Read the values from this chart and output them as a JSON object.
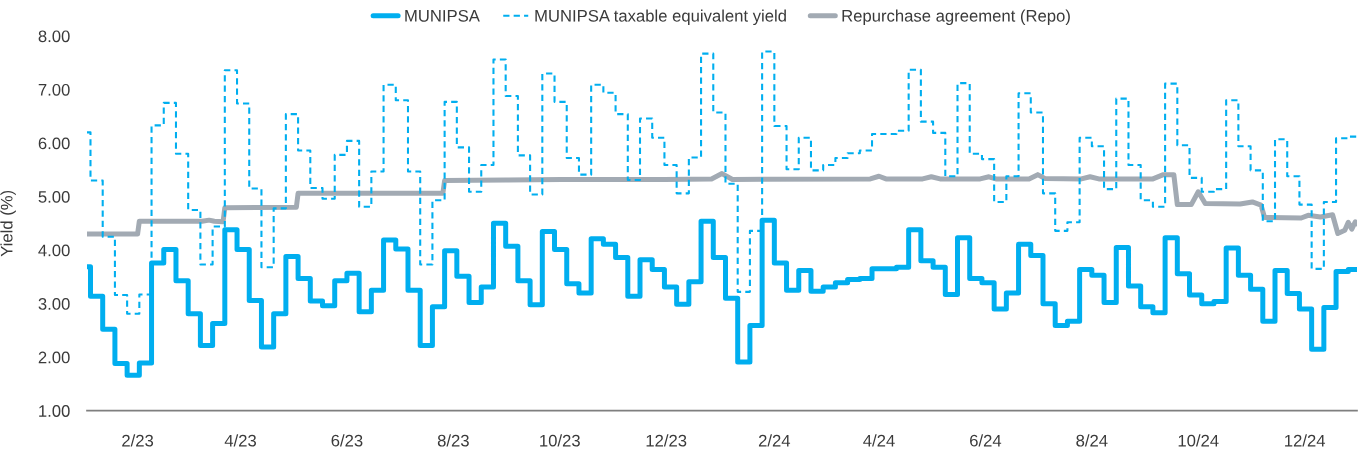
{
  "chart_data": {
    "type": "step",
    "ylabel": "Yield (%)",
    "legend": "top",
    "ylim": [
      1,
      8
    ],
    "yticks": [
      {
        "value": 1,
        "label": "1.00"
      },
      {
        "value": 2,
        "label": "2.00"
      },
      {
        "value": 3,
        "label": "3.00"
      },
      {
        "value": 4,
        "label": "4.00"
      },
      {
        "value": 5,
        "label": "5.00"
      },
      {
        "value": 6,
        "label": "6.00"
      },
      {
        "value": 7,
        "label": "7.00"
      },
      {
        "value": 8,
        "label": "8.00"
      }
    ],
    "xlim": [
      "2023-01-03",
      "2024-12-31"
    ],
    "xticks": [
      {
        "value": "2023-02-01",
        "label": "2/23"
      },
      {
        "value": "2023-04-01",
        "label": "4/23"
      },
      {
        "value": "2023-06-01",
        "label": "6/23"
      },
      {
        "value": "2023-08-01",
        "label": "8/23"
      },
      {
        "value": "2023-10-01",
        "label": "10/23"
      },
      {
        "value": "2023-12-01",
        "label": "12/23"
      },
      {
        "value": "2024-02-01",
        "label": "2/24"
      },
      {
        "value": "2024-04-01",
        "label": "4/24"
      },
      {
        "value": "2024-06-01",
        "label": "6/24"
      },
      {
        "value": "2024-08-01",
        "label": "8/24"
      },
      {
        "value": "2024-10-01",
        "label": "10/24"
      },
      {
        "value": "2024-12-01",
        "label": "12/24"
      }
    ],
    "x": [
      "2023-01-03",
      "2023-01-05",
      "2023-01-12",
      "2023-01-19",
      "2023-01-26",
      "2023-02-02",
      "2023-02-09",
      "2023-02-16",
      "2023-02-23",
      "2023-03-02",
      "2023-03-09",
      "2023-03-16",
      "2023-03-23",
      "2023-03-30",
      "2023-04-06",
      "2023-04-13",
      "2023-04-20",
      "2023-04-27",
      "2023-05-04",
      "2023-05-11",
      "2023-05-18",
      "2023-05-25",
      "2023-06-01",
      "2023-06-08",
      "2023-06-15",
      "2023-06-22",
      "2023-06-29",
      "2023-07-06",
      "2023-07-13",
      "2023-07-20",
      "2023-07-27",
      "2023-08-03",
      "2023-08-10",
      "2023-08-17",
      "2023-08-24",
      "2023-08-31",
      "2023-09-07",
      "2023-09-14",
      "2023-09-21",
      "2023-09-28",
      "2023-10-05",
      "2023-10-12",
      "2023-10-19",
      "2023-10-26",
      "2023-11-02",
      "2023-11-09",
      "2023-11-16",
      "2023-11-23",
      "2023-11-30",
      "2023-12-07",
      "2023-12-14",
      "2023-12-21",
      "2023-12-28",
      "2024-01-04",
      "2024-01-11",
      "2024-01-18",
      "2024-01-25",
      "2024-02-01",
      "2024-02-08",
      "2024-02-15",
      "2024-02-22",
      "2024-02-29",
      "2024-03-07",
      "2024-03-14",
      "2024-03-21",
      "2024-03-28",
      "2024-04-04",
      "2024-04-11",
      "2024-04-18",
      "2024-04-25",
      "2024-05-02",
      "2024-05-09",
      "2024-05-16",
      "2024-05-23",
      "2024-05-30",
      "2024-06-06",
      "2024-06-13",
      "2024-06-20",
      "2024-06-27",
      "2024-07-04",
      "2024-07-11",
      "2024-07-18",
      "2024-07-25",
      "2024-08-01",
      "2024-08-08",
      "2024-08-15",
      "2024-08-22",
      "2024-08-29",
      "2024-09-05",
      "2024-09-12",
      "2024-09-19",
      "2024-09-26",
      "2024-10-03",
      "2024-10-10",
      "2024-10-17",
      "2024-10-24",
      "2024-10-31",
      "2024-11-07",
      "2024-11-14",
      "2024-11-21",
      "2024-11-28",
      "2024-12-05",
      "2024-12-12",
      "2024-12-19",
      "2024-12-26",
      "2024-12-31"
    ],
    "series": [
      {
        "name": "MUNIPSA",
        "color": "#00aeef",
        "line_style": "solid",
        "values": [
          3.69,
          3.14,
          2.52,
          1.88,
          1.66,
          1.89,
          3.76,
          4.01,
          3.43,
          2.81,
          2.22,
          2.63,
          4.38,
          4.01,
          3.06,
          2.19,
          2.81,
          3.88,
          3.47,
          3.05,
          2.96,
          3.43,
          3.57,
          2.85,
          3.25,
          4.19,
          4.02,
          3.25,
          2.22,
          2.94,
          3.99,
          3.51,
          3.02,
          3.31,
          4.5,
          4.07,
          3.43,
          2.98,
          4.35,
          4.01,
          3.37,
          3.2,
          4.21,
          4.11,
          3.86,
          3.14,
          3.82,
          3.64,
          3.31,
          2.99,
          3.41,
          4.54,
          3.86,
          3.1,
          1.91,
          2.59,
          4.56,
          3.76,
          3.25,
          3.62,
          3.23,
          3.31,
          3.39,
          3.45,
          3.47,
          3.65,
          3.65,
          3.68,
          4.38,
          3.8,
          3.68,
          3.17,
          4.23,
          3.47,
          3.39,
          2.9,
          3.2,
          4.11,
          3.9,
          3.0,
          2.59,
          2.67,
          3.64,
          3.53,
          3.02,
          4.05,
          3.33,
          2.94,
          2.83,
          4.23,
          3.56,
          3.16,
          3.0,
          3.04,
          4.04,
          3.53,
          3.27,
          2.67,
          3.62,
          3.19,
          2.9,
          2.15,
          2.93,
          3.6,
          3.64,
          3.64
        ]
      },
      {
        "name": "MUNIPSA taxable equivalent yield",
        "color": "#00aeef",
        "line_style": "dashed",
        "values": [
          6.2,
          5.3,
          4.25,
          3.16,
          2.81,
          3.17,
          6.33,
          6.75,
          5.8,
          4.75,
          3.73,
          4.44,
          7.36,
          6.74,
          5.15,
          3.68,
          4.78,
          6.54,
          5.86,
          5.16,
          4.96,
          5.78,
          6.04,
          4.81,
          5.47,
          7.09,
          6.8,
          5.47,
          3.73,
          4.93,
          6.77,
          5.92,
          5.09,
          5.59,
          7.56,
          6.88,
          5.77,
          5.04,
          7.3,
          6.77,
          5.72,
          5.41,
          7.09,
          6.94,
          6.54,
          5.31,
          6.46,
          6.1,
          5.59,
          5.06,
          5.73,
          7.67,
          6.57,
          5.24,
          3.22,
          4.36,
          7.71,
          6.32,
          5.51,
          6.1,
          5.49,
          5.59,
          5.72,
          5.81,
          5.86,
          6.17,
          6.17,
          6.23,
          7.37,
          6.4,
          6.19,
          5.38,
          7.12,
          5.8,
          5.7,
          4.9,
          5.38,
          6.93,
          6.57,
          5.06,
          4.36,
          4.52,
          6.1,
          5.94,
          5.14,
          6.83,
          5.59,
          4.93,
          4.81,
          7.11,
          5.96,
          5.35,
          5.09,
          5.14,
          6.8,
          5.94,
          5.49,
          4.54,
          6.07,
          5.38,
          4.85,
          3.65,
          4.9,
          6.09,
          6.12,
          6.12
        ]
      },
      {
        "name": "Repurchase agreement (Repo)",
        "type": "line",
        "color": "#a2aab3",
        "line_style": "solid",
        "x": [
          "2023-01-03",
          "2023-02-01",
          "2023-02-02",
          "2023-03-10",
          "2023-03-14",
          "2023-03-17",
          "2023-03-22",
          "2023-03-23",
          "2023-05-03",
          "2023-05-04",
          "2023-07-26",
          "2023-07-27",
          "2023-08-31",
          "2023-10-02",
          "2023-11-30",
          "2023-12-27",
          "2024-01-02",
          "2024-01-08",
          "2024-03-27",
          "2024-04-01",
          "2024-04-05",
          "2024-04-26",
          "2024-05-01",
          "2024-05-06",
          "2024-05-29",
          "2024-06-03",
          "2024-06-07",
          "2024-06-26",
          "2024-07-01",
          "2024-07-05",
          "2024-07-26",
          "2024-07-31",
          "2024-08-05",
          "2024-09-05",
          "2024-09-11",
          "2024-09-17",
          "2024-09-19",
          "2024-09-27",
          "2024-10-01",
          "2024-10-05",
          "2024-10-25",
          "2024-11-01",
          "2024-11-06",
          "2024-11-08",
          "2024-11-29",
          "2024-12-03",
          "2024-12-10",
          "2024-12-17",
          "2024-12-20",
          "2024-12-24",
          "2024-12-26",
          "2024-12-28",
          "2024-12-30",
          "2024-12-31"
        ],
        "values": [
          4.3,
          4.3,
          4.54,
          4.54,
          4.56,
          4.54,
          4.53,
          4.79,
          4.8,
          5.06,
          5.06,
          5.3,
          5.31,
          5.32,
          5.32,
          5.33,
          5.43,
          5.32,
          5.33,
          5.38,
          5.33,
          5.33,
          5.37,
          5.33,
          5.33,
          5.37,
          5.33,
          5.33,
          5.41,
          5.34,
          5.33,
          5.37,
          5.33,
          5.33,
          5.41,
          5.41,
          4.85,
          4.85,
          5.09,
          4.87,
          4.86,
          4.9,
          4.84,
          4.61,
          4.6,
          4.65,
          4.62,
          4.66,
          4.31,
          4.37,
          4.52,
          4.39,
          4.53,
          4.49
        ]
      }
    ]
  }
}
